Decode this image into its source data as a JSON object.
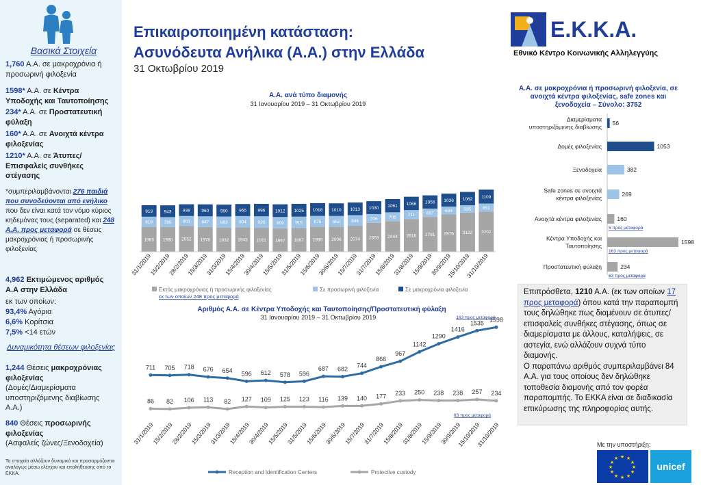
{
  "header": {
    "title_line1": "Επικαιροποιημένη κατάσταση:",
    "title_line2": "Ασυνόδευτα Ανήλικα (Α.Α.) στην Ελλάδα",
    "date": "31 Οκτωβρίου 2019",
    "logo_text": "Ε.Κ.Κ.Α.",
    "org_name": "Εθνικό Κέντρο Κοινωνικής Αλληλεγγύης"
  },
  "sidebar": {
    "title": "Βασικά Στοιχεία",
    "p1_num": "1,760",
    "p1_text": " Α.Α. σε μακροχρόνια ή προσωρινή φιλοξενία",
    "p2_num": "1598*",
    "p2_text": " Α.Α. σε ",
    "p2_bold": "Κέντρα Υποδοχής και Ταυτοποίησης",
    "p3_num": "234*",
    "p3_text": " Α.Α. σε ",
    "p3_bold": "Προστατευτική φύλαξη",
    "p4_num": "160*",
    "p4_text": " Α.Α. σε ",
    "p4_bold": "Ανοιχτά κέντρα φιλοξενίας",
    "p5_num": "1210*",
    "p5_text": " Α.Α. σε ",
    "p5_bold": "Άτυπες/Επισφαλείς συνθήκες στέγασης",
    "note_a": "*συμπεριλαμβάνονται ",
    "note_num1": "276 παιδιά που συνοδεύονται από ενήλικο",
    "note_b": " που δεν είναι κατά τον νόμο κύριος κηδεμόνας τους (separated) και ",
    "note_num2": "248 Α.Α. προς μεταφορά",
    "note_c": " σε θέσεις μακροχρόνιας ή προσωρινής φιλοξενίας",
    "est_num": "4,962",
    "est_text": " Εκτιμώμενος αριθμός Α.Α στην Ελλάδα",
    "est_sub": "εκ των οποίων:",
    "boys_pct": "93,4%",
    "boys": " Αγόρια",
    "girls_pct": "6,6%",
    "girls": " Κορίτσια",
    "under14_pct": "7,5%",
    "under14": " <14 ετών",
    "capacity_title": "Δυναμικότητα θέσεων φιλοξενίας",
    "cap1_num": "1,244",
    "cap1_text": " Θέσεις ",
    "cap1_bold": "μακροχρόνιας φιλοξενίας",
    "cap1_sub": "(Δομές/Διαμερίσματα υποστηριζόμενης διαβίωσης Α.Α.)",
    "cap2_num": "840",
    "cap2_text": " Θέσεις ",
    "cap2_bold": "προσωρινής φιλοξενίας",
    "cap2_sub": "(Ασφαλείς ζώνες/Ξενοδοχεία)",
    "footnote": "Τα στοιχεία αλλάζουν δυναμικά και προσαρμόζονται αναλόγως μέσω ελέγχου και επαλήθευσης από το ΕΚΚΑ."
  },
  "textbox": {
    "t1": "Επιπρόσθετα, ",
    "num": "1210",
    "t2": " Α.Α. (εκ των οποίων ",
    "link": "17 προς μεταφορά",
    "t3": ") όπου κατά την παραπομπή τους δηλώθηκε πως διαμένουν σε άτυπες/επισφαλείς συνθήκες στέγασης, όπως σε διαμερίσματα με άλλους, καταλήψεις, σε αστεγία, ενώ αλλάζουν συχνά τύπο διαμονής.",
    "t4": "Ο παραπάνω αριθμός συμπεριλαμβάνει 84 Α.Α. για τους οποίους δεν δηλώθηκε τοποθεσία διαμονής από τον φορέα παραπομπής. Το ΕΚΚΑ είναι σε διαδικασία επικύρωσης της πληροφορίας αυτής."
  },
  "support": "Με την υποστήριξη:",
  "unicef": "unicef",
  "colors": {
    "dark_blue": "#1f4e8c",
    "light_blue": "#9dc3e6",
    "grey": "#a6a6a6",
    "line_blue": "#2e6da4",
    "line_grey": "#a6a6a6"
  },
  "chart_data": [
    {
      "type": "bar",
      "title": "Α.Α. ανά τύπο διαμονής",
      "subtitle": "31 Ιανουαρίου 2019 – 31 Οκτωβρίου 2019",
      "categories": [
        "31/1/2019",
        "15/2/2019",
        "28/2/2019",
        "15/3/2019",
        "31/3/2019",
        "15/4/2019",
        "30/4/2019",
        "15/5/2019",
        "31/5/2019",
        "15/6/2019",
        "30/6/2019",
        "15/7/2019",
        "31/7/2019",
        "15/8/2019",
        "31/8/2019",
        "15/9/2019",
        "30/9/2019",
        "15/10/2019",
        "31/10/2019"
      ],
      "stacked": true,
      "series": [
        {
          "name": "Εκτός μακροχρόνιας ή προσωρινής φιλοξενίας",
          "values": [
            1983,
            1980,
            2052,
            1978,
            1932,
            1943,
            1911,
            1867,
            1887,
            1990,
            2006,
            2074,
            2303,
            2444,
            2616,
            2781,
            2976,
            3122,
            3202
          ]
        },
        {
          "name": "Σε προσωρινή φιλοξενία",
          "values": [
            816,
            785,
            803,
            847,
            883,
            904,
            920,
            909,
            915,
            875,
            852,
            846,
            706,
            705,
            711,
            667,
            634,
            595,
            651
          ]
        },
        {
          "name": "Σε μακροχρόνια φιλοξενία",
          "values": [
            919,
            943,
            938,
            960,
            950,
            965,
            996,
            1012,
            1025,
            1018,
            1010,
            1013,
            1030,
            1061,
            1066,
            1055,
            1036,
            1062,
            1109
          ]
        }
      ],
      "legend_note": "εκ των οποίων 248 προς μεταφορά"
    },
    {
      "type": "bar",
      "orientation": "horizontal",
      "title": "Α.Α. σε μακροχρόνια ή προσωρινή φιλοξενία, σε ανοιχτά κέντρα φιλοξενίας, safe zones και ξενοδοχεία – Σύνολο: 3752",
      "categories": [
        "Διαμερίσματα υποστηριζόμενης διαβίωσης",
        "Δομές φιλοξενίας",
        "Ξενοδοχεία",
        "Safe zones σε ανοιχτά κέντρα φιλοξενίας",
        "Ανοιχτά κέντρα φιλοξενίας",
        "Κέντρα Υποδοχής και Ταυτοποίησης",
        "Προστατευτική φύλαξη"
      ],
      "values": [
        56,
        1053,
        382,
        269,
        160,
        1598,
        234
      ],
      "bar_colors": [
        "#1f4e8c",
        "#1f4e8c",
        "#9dc3e6",
        "#9dc3e6",
        "#a6a6a6",
        "#a6a6a6",
        "#a6a6a6"
      ],
      "notes": {
        "4": "5 προς μεταφορά",
        "5": "163 προς μεταφορά",
        "6": "63 προς μεταφορά"
      }
    },
    {
      "type": "line",
      "title": "Αριθμός Α.Α. σε Κέντρα Υποδοχής και Ταυτοποίησης/Προστατευτική φύλαξη",
      "subtitle": "31 Ιανουαρίου 2019 – 31 Οκτωβρίου 2019",
      "categories": [
        "31/1/2019",
        "15/2/2019",
        "28/2/2019",
        "15/3/2019",
        "31/3/2019",
        "15/4/2019",
        "30/4/2019",
        "15/5/2019",
        "31/5/2019",
        "15/6/2019",
        "30/6/2019",
        "15/7/2019",
        "31/7/2019",
        "15/8/2019",
        "31/8/2019",
        "15/9/2019",
        "30/9/2019",
        "15/10/2019",
        "31/10/2019"
      ],
      "series": [
        {
          "name": "Reception and Identification Centers",
          "values": [
            711,
            705,
            718,
            676,
            654,
            596,
            612,
            578,
            596,
            687,
            682,
            744,
            866,
            967,
            1142,
            1290,
            1416,
            1535,
            1598
          ]
        },
        {
          "name": "Protective custody",
          "values": [
            86,
            82,
            106,
            113,
            82,
            127,
            109,
            125,
            123,
            116,
            139,
            140,
            177,
            233,
            250,
            238,
            238,
            257,
            234
          ]
        }
      ],
      "notes": {
        "ric": "163 προς μεταφορά",
        "pc": "63 προς μεταφορά"
      }
    }
  ]
}
